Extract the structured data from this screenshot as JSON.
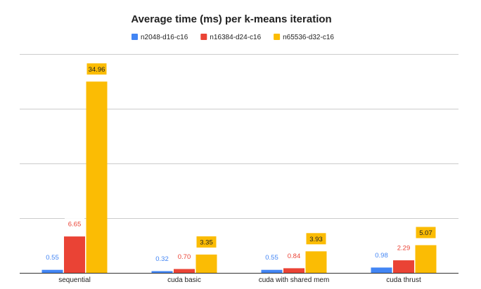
{
  "chart_data": {
    "type": "bar",
    "title": "Average time (ms) per k-means iteration",
    "xlabel": "",
    "ylabel": "",
    "categories": [
      "sequential",
      "cuda basic",
      "cuda with shared mem",
      "cuda thrust"
    ],
    "series": [
      {
        "name": "n2048-d16-c16",
        "color": "#4285F4",
        "values": [
          0.55,
          0.32,
          0.55,
          0.98
        ],
        "labels": [
          "0.55",
          "0.32",
          "0.55",
          "0.98"
        ]
      },
      {
        "name": "n16384-d24-c16",
        "color": "#EA4335",
        "values": [
          6.65,
          0.7,
          0.84,
          2.29
        ],
        "labels": [
          "6.65",
          "0.70",
          "0.84",
          "2.29"
        ]
      },
      {
        "name": "n65536-d32-c16",
        "color": "#FBBC04",
        "values": [
          34.96,
          3.35,
          3.93,
          5.07
        ],
        "labels": [
          "34.96",
          "3.35",
          "3.93",
          "5.07"
        ]
      }
    ],
    "ylim": [
      0,
      40
    ],
    "gridlines": [
      0,
      10,
      20,
      30,
      40
    ],
    "grid": true,
    "legend_position": "top"
  }
}
